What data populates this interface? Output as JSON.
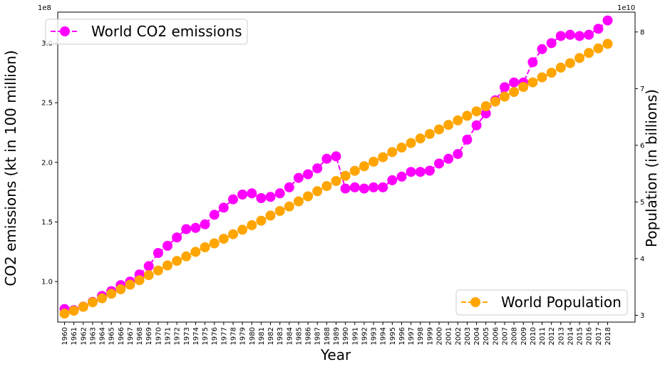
{
  "chart_data": {
    "type": "line",
    "xlabel": "Year",
    "ylabel": "CO2 emissions (kt in 100 million)",
    "y2label": "Population (in billions)",
    "y_offset_text": "1e8",
    "y2_offset_text": "1e10",
    "ylim": [
      0.66,
      3.26
    ],
    "y2lim": [
      2.88,
      8.35
    ],
    "y_ticks": [
      1.0,
      1.5,
      2.0,
      2.5,
      3.0
    ],
    "y_tick_labels": [
      "1.0",
      "1.5",
      "2.0",
      "2.5",
      "3.0"
    ],
    "y2_ticks": [
      3,
      4,
      5,
      6,
      7,
      8
    ],
    "y2_tick_labels": [
      "3",
      "4",
      "5",
      "6",
      "7",
      "8"
    ],
    "grid": false,
    "categories": [
      "1960",
      "1961",
      "1962",
      "1963",
      "1964",
      "1965",
      "1966",
      "1967",
      "1968",
      "1969",
      "1970",
      "1971",
      "1972",
      "1973",
      "1974",
      "1975",
      "1976",
      "1977",
      "1978",
      "1979",
      "1980",
      "1981",
      "1982",
      "1983",
      "1984",
      "1985",
      "1986",
      "1987",
      "1988",
      "1989",
      "1990",
      "1991",
      "1992",
      "1993",
      "1994",
      "1995",
      "1996",
      "1997",
      "1998",
      "1999",
      "2000",
      "2001",
      "2002",
      "2003",
      "2004",
      "2005",
      "2006",
      "2007",
      "2008",
      "2009",
      "2010",
      "2011",
      "2012",
      "2013",
      "2014",
      "2015",
      "2016",
      "2017",
      "2018"
    ],
    "series": [
      {
        "name": "World CO2 emissions",
        "axis": "left",
        "color": "#ff00ff",
        "legend_position": "upper left",
        "values": [
          0.77,
          0.76,
          0.79,
          0.83,
          0.88,
          0.92,
          0.97,
          1.0,
          1.06,
          1.13,
          1.24,
          1.3,
          1.37,
          1.44,
          1.45,
          1.48,
          1.56,
          1.62,
          1.69,
          1.73,
          1.74,
          1.7,
          1.71,
          1.74,
          1.79,
          1.87,
          1.9,
          1.95,
          2.03,
          2.05,
          1.78,
          1.79,
          1.78,
          1.79,
          1.79,
          1.85,
          1.88,
          1.92,
          1.92,
          1.93,
          1.99,
          2.03,
          2.07,
          2.19,
          2.31,
          2.41,
          2.52,
          2.63,
          2.67,
          2.67,
          2.84,
          2.95,
          3.0,
          3.06,
          3.07,
          3.06,
          3.07,
          3.12,
          3.19
        ]
      },
      {
        "name": "World Population",
        "axis": "right",
        "color": "#ffa500",
        "legend_position": "lower right",
        "values": [
          3.03,
          3.08,
          3.15,
          3.23,
          3.3,
          3.38,
          3.46,
          3.54,
          3.62,
          3.71,
          3.79,
          3.88,
          3.96,
          4.04,
          4.12,
          4.2,
          4.27,
          4.35,
          4.43,
          4.51,
          4.59,
          4.67,
          4.76,
          4.84,
          4.92,
          5.01,
          5.1,
          5.19,
          5.28,
          5.37,
          5.46,
          5.55,
          5.63,
          5.71,
          5.79,
          5.88,
          5.96,
          6.04,
          6.12,
          6.2,
          6.28,
          6.36,
          6.44,
          6.52,
          6.6,
          6.69,
          6.77,
          6.86,
          6.94,
          7.03,
          7.11,
          7.2,
          7.28,
          7.37,
          7.45,
          7.54,
          7.63,
          7.71,
          7.79
        ]
      }
    ]
  }
}
